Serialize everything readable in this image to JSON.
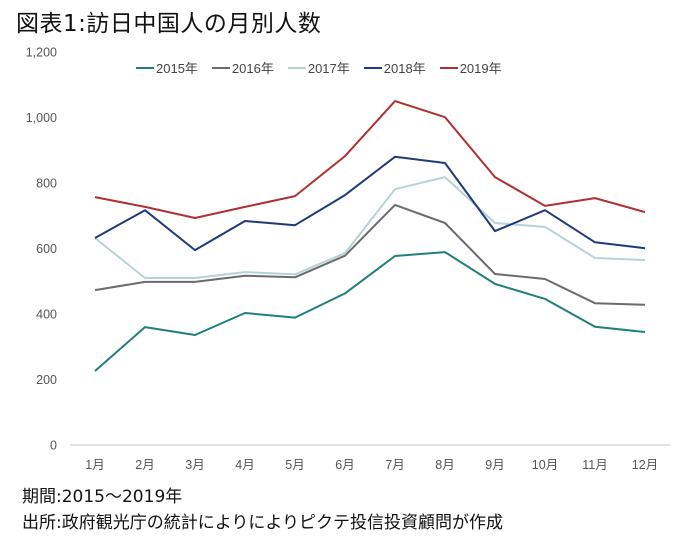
{
  "title": "図表1:訪日中国人の月別人数",
  "notes": {
    "period": "期間:2015～2019年",
    "source": "出所:政府観光庁の統計によりによりピクテ投信投資顧問が作成"
  },
  "chart_data": {
    "type": "line",
    "title": "図表1:訪日中国人の月別人数",
    "xlabel": "",
    "ylabel": "",
    "categories": [
      "1月",
      "2月",
      "3月",
      "4月",
      "5月",
      "6月",
      "7月",
      "8月",
      "9月",
      "10月",
      "11月",
      "12月"
    ],
    "ylim": [
      0,
      1200
    ],
    "yticks": [
      0,
      200,
      400,
      600,
      800,
      1000,
      1200
    ],
    "ytick_labels": [
      "0",
      "200",
      "400",
      "600",
      "800",
      "1,000",
      "1,200"
    ],
    "grid": false,
    "legend_position": "top",
    "series": [
      {
        "name": "2015年",
        "color": "#1f7f7a",
        "values": [
          226,
          360,
          336,
          403,
          389,
          463,
          577,
          589,
          492,
          446,
          361,
          345
        ]
      },
      {
        "name": "2016年",
        "color": "#6b6b6b",
        "values": [
          473,
          498,
          498,
          517,
          512,
          578,
          733,
          678,
          522,
          507,
          433,
          428
        ]
      },
      {
        "name": "2017年",
        "color": "#b5d3d6",
        "values": [
          632,
          510,
          510,
          528,
          521,
          586,
          781,
          818,
          678,
          666,
          571,
          565
        ]
      },
      {
        "name": "2018年",
        "color": "#1f3a7a",
        "values": [
          632,
          717,
          595,
          684,
          671,
          763,
          880,
          861,
          653,
          717,
          619,
          601
        ]
      },
      {
        "name": "2019年",
        "color": "#b03030",
        "values": [
          757,
          727,
          693,
          727,
          760,
          882,
          1050,
          1001,
          818,
          730,
          754,
          711
        ]
      }
    ]
  }
}
